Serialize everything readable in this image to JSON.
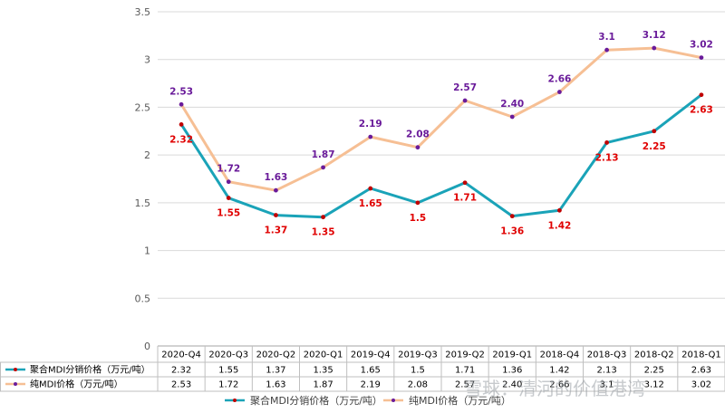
{
  "chart_data": {
    "type": "line",
    "categories": [
      "2020-Q4",
      "2020-Q3",
      "2020-Q2",
      "2020-Q1",
      "2019-Q4",
      "2019-Q3",
      "2019-Q2",
      "2019-Q1",
      "2018-Q4",
      "2018-Q3",
      "2018-Q2",
      "2018-Q1"
    ],
    "series": [
      {
        "name": "聚合MDI分销价格（万元/吨）",
        "values": [
          2.32,
          1.55,
          1.37,
          1.35,
          1.65,
          1.5,
          1.71,
          1.36,
          1.42,
          2.13,
          2.25,
          2.63
        ],
        "labels": [
          "2.32",
          "1.55",
          "1.37",
          "1.35",
          "1.65",
          "1.5",
          "1.71",
          "1.36",
          "1.42",
          "2.13",
          "2.25",
          "2.63"
        ],
        "line_color": "#1aa3b8",
        "marker_color": "#c00000",
        "label_color": "#e00000"
      },
      {
        "name": "纯MDI价格（万元/吨）",
        "values": [
          2.53,
          1.72,
          1.63,
          1.87,
          2.19,
          2.08,
          2.57,
          2.4,
          2.66,
          3.1,
          3.12,
          3.02
        ],
        "labels": [
          "2.53",
          "1.72",
          "1.63",
          "1.87",
          "2.19",
          "2.08",
          "2.57",
          "2.40",
          "2.66",
          "3.1",
          "3.12",
          "3.02"
        ],
        "line_color": "#f6bf94",
        "marker_color": "#6a1b9a",
        "label_color": "#6a1b9a"
      }
    ],
    "yticks": [
      "0",
      "0.5",
      "1",
      "1.5",
      "2",
      "2.5",
      "3",
      "3.5"
    ],
    "ylim": [
      0,
      3.5
    ],
    "grid": true,
    "legend": "bottom",
    "data_table": true
  },
  "watermark": "雪球：清河的价值港湾"
}
